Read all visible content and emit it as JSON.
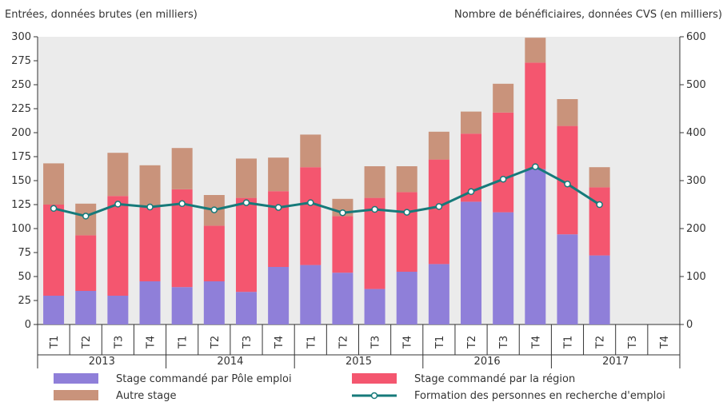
{
  "chart_data": {
    "type": "bar",
    "stacked": true,
    "ylabel": "Entrées, données brutes (en milliers)",
    "y2label": "Nombre de bénéficiaires, données CVS (en milliers)",
    "categories": [
      "T1",
      "T2",
      "T3",
      "T4",
      "T1",
      "T2",
      "T3",
      "T4",
      "T1",
      "T2",
      "T3",
      "T4",
      "T1",
      "T2",
      "T3",
      "T4",
      "T1",
      "T2",
      "T3",
      "T4"
    ],
    "groups": [
      "2013",
      "2014",
      "2015",
      "2016",
      "2017"
    ],
    "series": [
      {
        "name": "Stage commandé par Pôle emploi",
        "color": "#8f7fd9",
        "values": [
          30,
          35,
          30,
          45,
          39,
          45,
          34,
          60,
          62,
          54,
          37,
          55,
          63,
          128,
          117,
          162,
          94,
          72,
          null,
          null
        ]
      },
      {
        "name": "Stage commandé par la région",
        "color": "#f4566f",
        "values": [
          95,
          58,
          104,
          78,
          102,
          58,
          98,
          79,
          102,
          59,
          95,
          83,
          109,
          71,
          104,
          111,
          113,
          71,
          null,
          null
        ]
      },
      {
        "name": "Autre stage",
        "color": "#c9937b",
        "values": [
          43,
          33,
          45,
          43,
          43,
          32,
          41,
          35,
          34,
          18,
          33,
          27,
          29,
          23,
          30,
          26,
          28,
          21,
          null,
          null
        ]
      },
      {
        "name": "Formation des personnes en recherche d'emploi",
        "color": "#167a7a",
        "type": "line",
        "axis": "y2",
        "values": [
          242,
          226,
          251,
          245,
          252,
          239,
          254,
          244,
          254,
          233,
          240,
          234,
          246,
          277,
          303,
          329,
          293,
          250,
          null,
          null
        ]
      }
    ],
    "ylim": [
      0,
      300
    ],
    "yticks": [
      0,
      25,
      50,
      75,
      100,
      125,
      150,
      175,
      200,
      225,
      250,
      275,
      300
    ],
    "y2lim": [
      0,
      600
    ],
    "y2ticks": [
      0,
      100,
      200,
      300,
      400,
      500,
      600
    ]
  }
}
